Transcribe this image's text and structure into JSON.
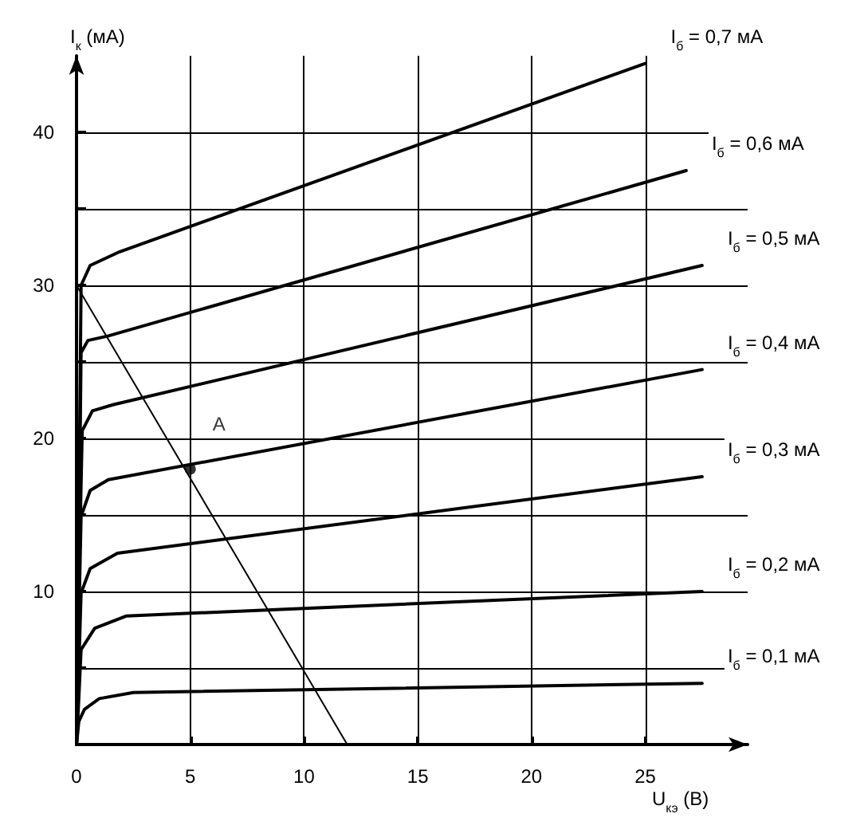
{
  "chart_data": {
    "type": "line",
    "xlabel": "U$_{кэ}$ (В)",
    "ylabel": "I$_{к}$ (мA)",
    "xlim": [
      0,
      29.5
    ],
    "ylim": [
      0,
      45
    ],
    "xticks": [
      0,
      5,
      10,
      15,
      20,
      25
    ],
    "yticks": [
      {
        "value": 5,
        "label": null
      },
      10,
      {
        "value": 15,
        "label": null
      },
      20,
      {
        "value": 25,
        "label": null
      },
      30,
      {
        "value": 35,
        "label": null
      },
      40
    ],
    "grid": true,
    "marker": "none",
    "series": [
      {
        "name": "I$_{б}$ = 0,1 мA",
        "color": "#000000",
        "x": [
          0,
          0.1,
          0.35,
          1,
          2.5,
          27.5
        ],
        "values": [
          0,
          1.5,
          2.3,
          3,
          3.4,
          4
        ]
      },
      {
        "name": "I$_{б}$ = 0,2 мA",
        "color": "#000000",
        "x": [
          0,
          0.1,
          0.2,
          0.8,
          2.2,
          27.5
        ],
        "values": [
          0,
          3,
          6.2,
          7.6,
          8.4,
          10
        ]
      },
      {
        "name": "I$_{б}$ = 0,3 мA",
        "color": "#000000",
        "x": [
          0,
          0.1,
          0.2,
          0.6,
          1.8,
          27.5
        ],
        "values": [
          0,
          5,
          9.9,
          11.5,
          12.5,
          17.5
        ]
      },
      {
        "name": "I$_{б}$ = 0,4 мA",
        "color": "#000000",
        "x": [
          0,
          0.1,
          0.2,
          0.6,
          1.4,
          27.5
        ],
        "values": [
          0,
          8,
          14.9,
          16.6,
          17.3,
          24.5
        ]
      },
      {
        "name": "I$_{б}$ = 0,5 мA",
        "color": "#000000",
        "x": [
          0,
          0.1,
          0.25,
          0.7,
          1.6,
          27.5
        ],
        "values": [
          0,
          10,
          20.5,
          21.8,
          22.2,
          31.3
        ]
      },
      {
        "name": "I$_{б}$ = 0,6 мA",
        "color": "#000000",
        "x": [
          0,
          0.1,
          0.2,
          0.5,
          1.4,
          26.8
        ],
        "values": [
          0,
          12,
          25.6,
          26.4,
          26.7,
          37.5
        ]
      },
      {
        "name": "I$_{б}$ = 0,7 мA",
        "color": "#000000",
        "x": [
          0,
          0.1,
          0.2,
          0.6,
          1.9,
          25
        ],
        "values": [
          0,
          14,
          30,
          31.3,
          32.2,
          44.5
        ]
      },
      {
        "color": "#000000",
        "x": [
          0,
          11.9
        ],
        "values": [
          30,
          0
        ]
      },
      {
        "type": "scatter",
        "marker": "circle",
        "color": "#000000",
        "x": [
          5
        ],
        "values": [
          18
        ]
      }
    ],
    "annotations": [
      {
        "text": "A",
        "x": 5,
        "y": 18
      }
    ]
  }
}
